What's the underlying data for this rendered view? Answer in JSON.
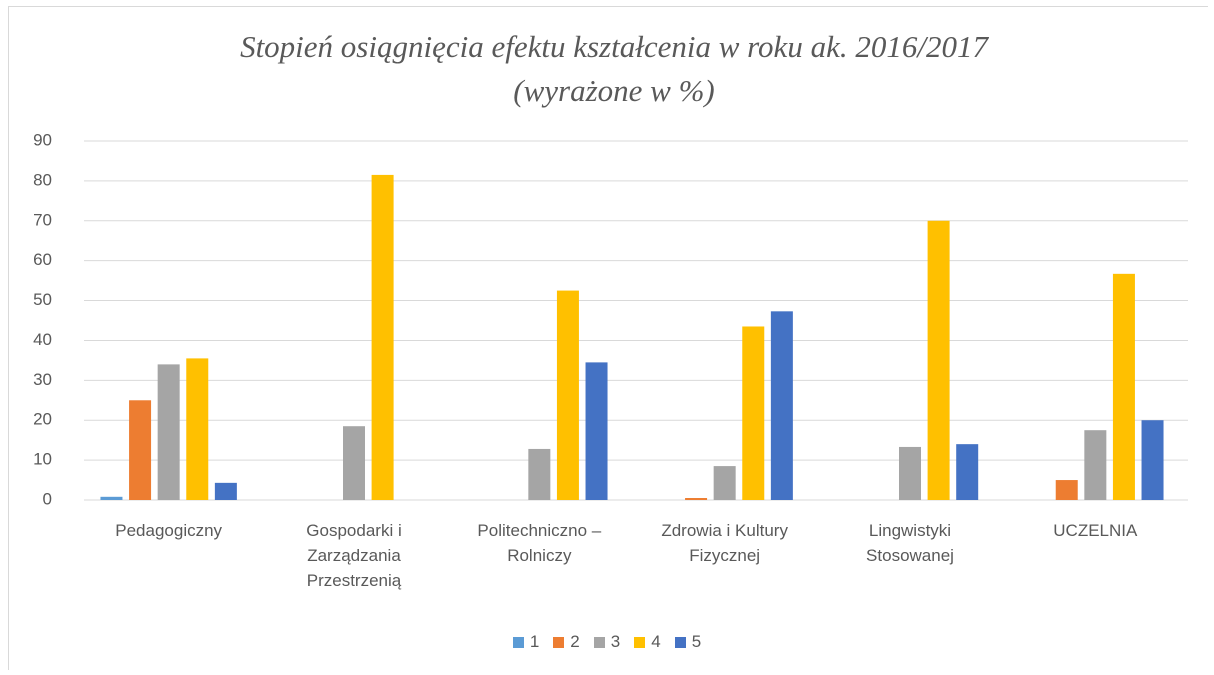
{
  "chart_data": {
    "type": "bar",
    "title": "Stopień osiągnięcia efektu kształcenia w roku ak. 2016/2017",
    "subtitle": "(wyrażone w %)",
    "categories": [
      "Pedagogiczny",
      "Gospodarki i Zarządzania Przestrzenią",
      "Politechniczno – Rolniczy",
      "Zdrowia i Kultury Fizycznej",
      "Lingwistyki Stosowanej",
      "UCZELNIA"
    ],
    "series": [
      {
        "name": "1",
        "color": "#5b9bd5",
        "values": [
          0.8,
          0,
          0,
          0,
          0,
          0
        ]
      },
      {
        "name": "2",
        "color": "#ed7d31",
        "values": [
          25,
          0,
          0,
          0.5,
          0,
          5
        ]
      },
      {
        "name": "3",
        "color": "#a5a5a5",
        "values": [
          34,
          18.5,
          12.8,
          8.5,
          13.3,
          17.5
        ]
      },
      {
        "name": "4",
        "color": "#ffc000",
        "values": [
          35.5,
          81.5,
          52.5,
          43.5,
          70,
          56.7
        ]
      },
      {
        "name": "5",
        "color": "#4472c4",
        "values": [
          4.3,
          0,
          34.5,
          47.3,
          14,
          20
        ]
      }
    ],
    "ylim": [
      0,
      90
    ],
    "yticks": [
      0,
      10,
      20,
      30,
      40,
      50,
      60,
      70,
      80,
      90
    ],
    "grid": true,
    "legend": "bottom"
  }
}
